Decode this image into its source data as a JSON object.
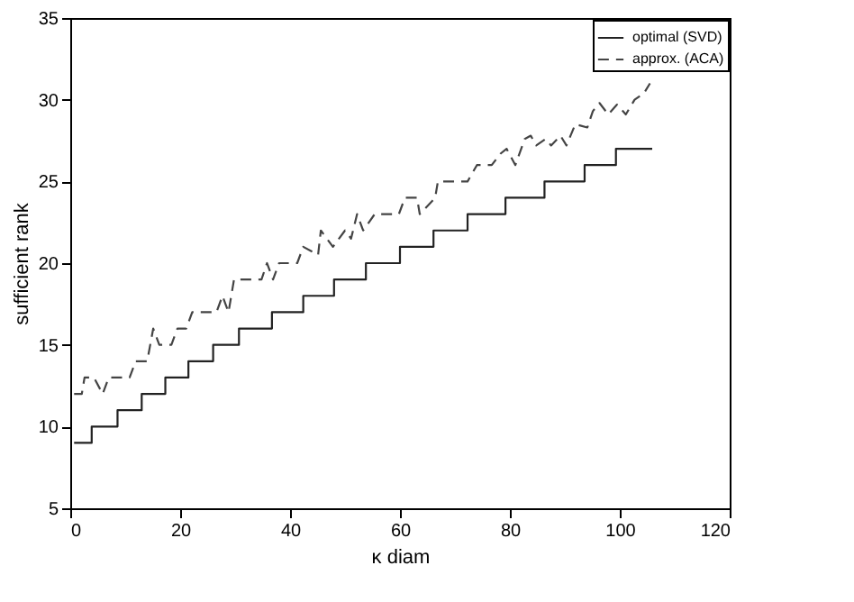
{
  "chart_data": {
    "type": "line",
    "xlabel": "κ diam",
    "ylabel": "sufficient rank",
    "xlim": [
      0,
      120
    ],
    "xticks": [
      0,
      20,
      40,
      60,
      80,
      100,
      120
    ],
    "ylim": [
      5,
      35
    ],
    "yticks": [
      5,
      10,
      15,
      20,
      25,
      30,
      35
    ],
    "grid": false,
    "legend": "top right",
    "marker": "none",
    "series": [
      {
        "name": "optimal (SVD)",
        "type": "step",
        "color": "#222222",
        "line_style": "solid",
        "x": [
          0.7,
          3.9,
          8.6,
          13.0,
          17.3,
          21.5,
          26.0,
          30.7,
          36.7,
          42.4,
          48.0,
          53.8,
          60.0,
          66.1,
          72.3,
          79.2,
          86.3,
          93.6,
          99.3,
          105.9
        ],
        "values": [
          9,
          10,
          11,
          12,
          13,
          14,
          15,
          16,
          17,
          18,
          19,
          20,
          21,
          22,
          23,
          24,
          25,
          26,
          27,
          27
        ]
      },
      {
        "name": "approx. (ACA)",
        "type": "line",
        "color": "#444444",
        "line_style": "dashed",
        "x": [
          0.7,
          2.1,
          2.6,
          4.3,
          5.9,
          7.0,
          10.8,
          11.9,
          14.0,
          15.1,
          16.2,
          18.4,
          19.5,
          21.1,
          22.2,
          26.6,
          27.7,
          28.8,
          29.8,
          34.8,
          35.8,
          36.9,
          38.0,
          41.3,
          42.4,
          45.1,
          45.6,
          47.8,
          50.0,
          51.1,
          52.2,
          53.3,
          55.4,
          59.8,
          60.9,
          63.1,
          63.6,
          66.4,
          66.9,
          72.3,
          74.0,
          76.7,
          78.3,
          79.4,
          81.0,
          82.7,
          83.8,
          84.8,
          86.5,
          87.5,
          89.2,
          90.3,
          91.9,
          94.1,
          95.1,
          96.3,
          97.9,
          99.5,
          101.1,
          102.7,
          104.4,
          105.5
        ],
        "values": [
          12,
          12,
          13,
          13,
          12,
          13,
          13,
          14,
          14,
          16,
          15,
          15,
          16,
          16,
          17,
          17,
          18,
          17,
          19,
          19,
          20,
          19,
          20,
          20,
          21,
          20.5,
          22,
          21,
          22,
          21.5,
          23,
          22,
          23,
          23,
          24,
          24,
          23,
          24,
          25,
          25,
          26,
          26,
          26.7,
          27,
          26,
          27.6,
          27.8,
          27.2,
          27.6,
          27.2,
          27.8,
          27.2,
          28.5,
          28.3,
          29.3,
          29.8,
          29.1,
          29.7,
          29.1,
          30,
          30.4,
          31
        ]
      }
    ]
  }
}
